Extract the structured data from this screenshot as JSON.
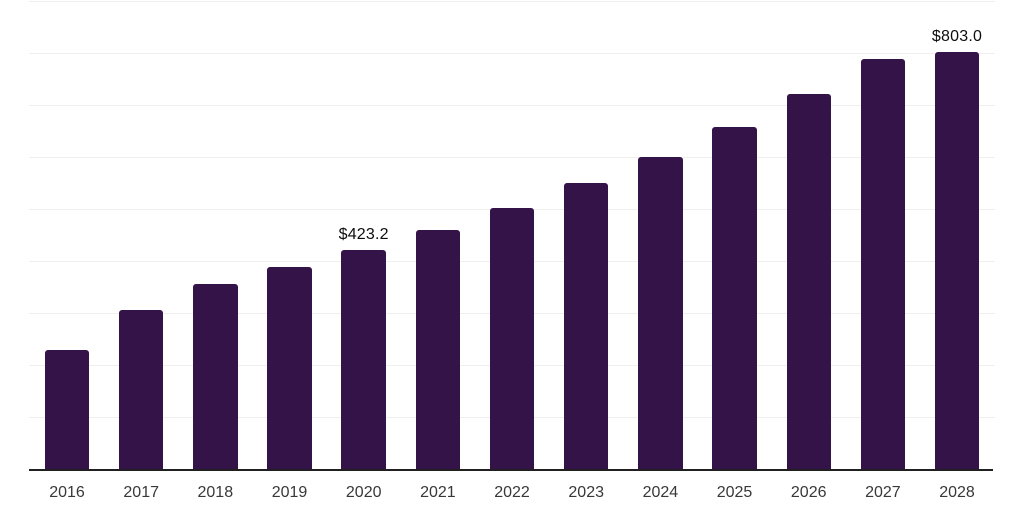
{
  "chart_data": {
    "type": "bar",
    "title": "",
    "xlabel": "",
    "ylabel": "",
    "categories": [
      "2016",
      "2017",
      "2018",
      "2019",
      "2020",
      "2021",
      "2022",
      "2023",
      "2024",
      "2025",
      "2026",
      "2027",
      "2028"
    ],
    "values": [
      230,
      307,
      358,
      390,
      423.2,
      461,
      503,
      551,
      602,
      659,
      722,
      790,
      803
    ],
    "data_labels": [
      "",
      "",
      "",
      "",
      "$423.2",
      "",
      "",
      "",
      "",
      "",
      "",
      "",
      "$803.0"
    ],
    "ylim": [
      0,
      903
    ],
    "gridline_step": 100,
    "grid": "horizontal",
    "legend": "none",
    "y_tick_labels_visible": false,
    "colors": {
      "bar": "#341349",
      "axis_line": "#202020",
      "gridline": "#efefef",
      "data_label_text": "#0d0d0d",
      "tick_label_text": "#383838",
      "background": "#ffffff"
    }
  }
}
